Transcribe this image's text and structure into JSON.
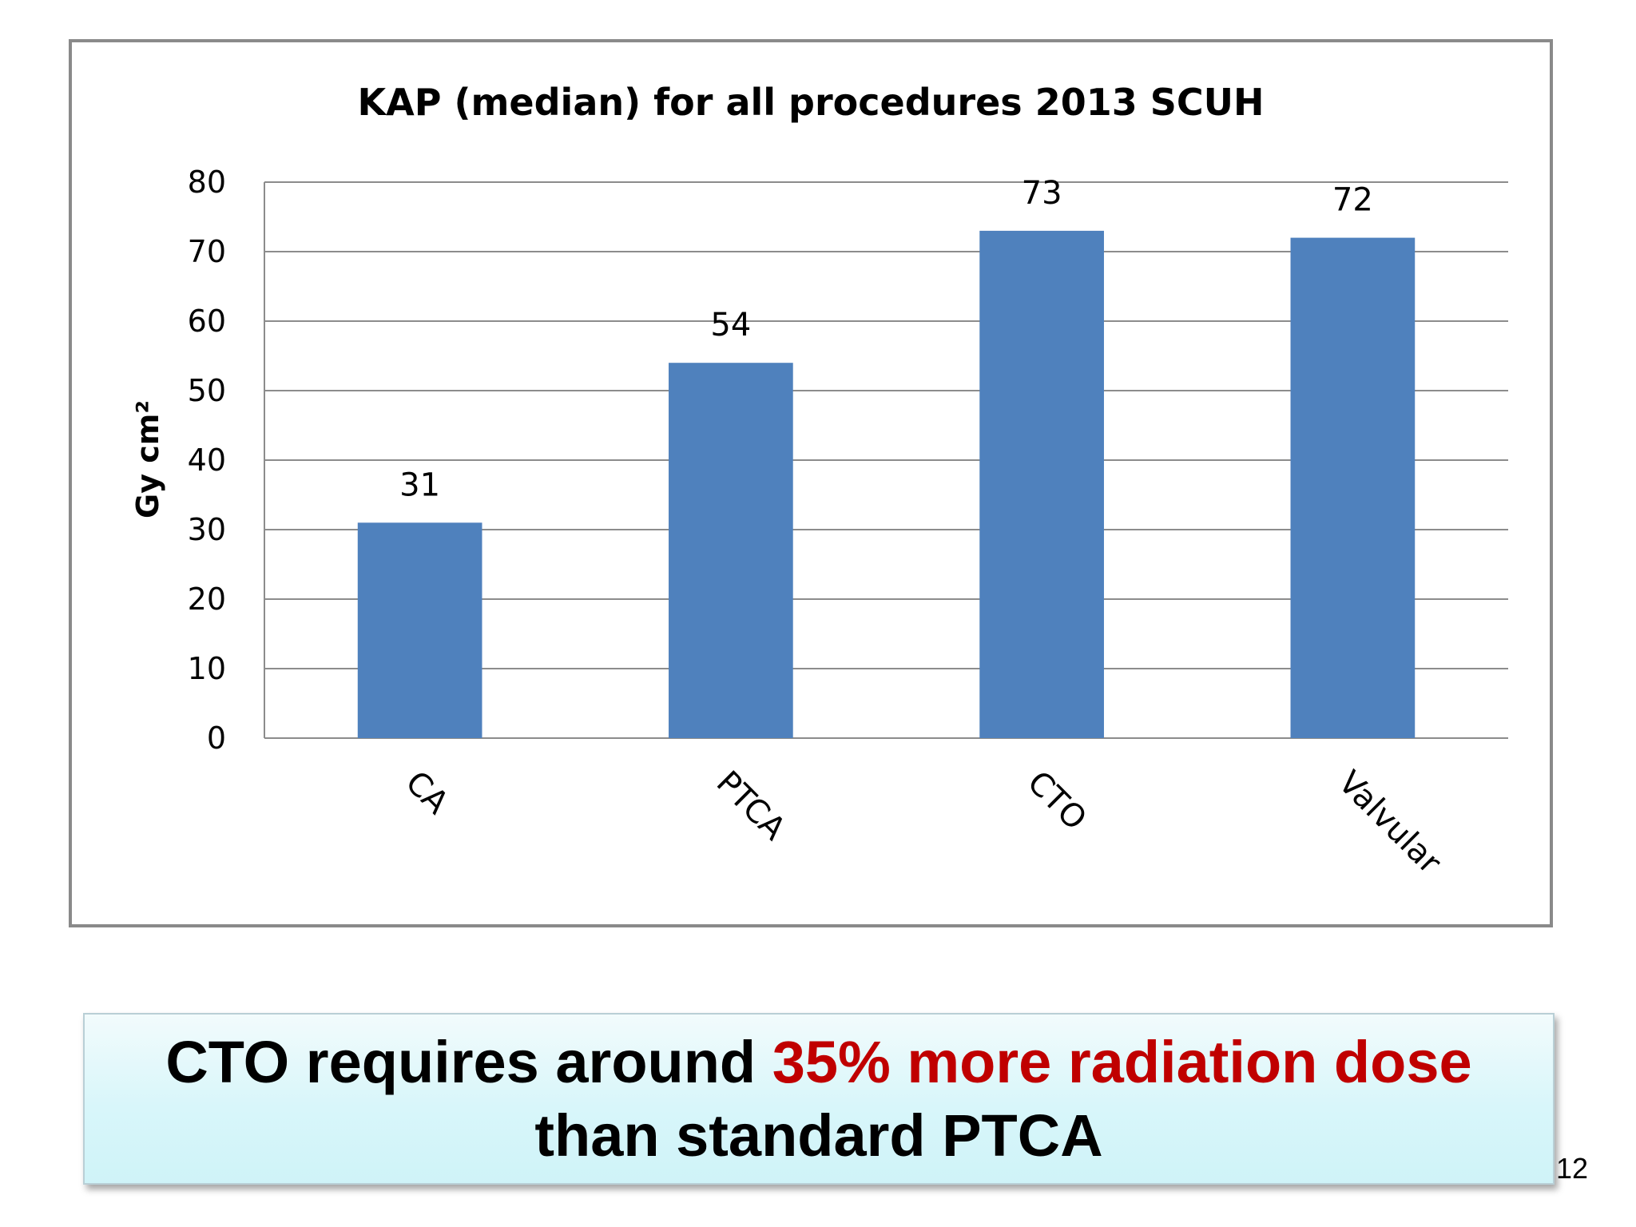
{
  "chart_data": {
    "type": "bar",
    "title": "KAP (median) for all procedures 2013 SCUH",
    "categories": [
      "CA",
      "PTCA",
      "CTO",
      "Valvular"
    ],
    "values": [
      31,
      54,
      73,
      72
    ],
    "data_labels": [
      "31",
      "54",
      "73",
      "72"
    ],
    "xlabel": "",
    "ylabel": "Gy cm²",
    "ylim": [
      0,
      80
    ],
    "yticks": [
      0,
      10,
      20,
      30,
      40,
      50,
      60,
      70,
      80
    ],
    "grid": true,
    "legend": "none",
    "bar_color": "#4f81bd"
  },
  "callout": {
    "part1": "CTO requires around ",
    "highlight": "35% more radiation dose",
    "part2": "than standard PTCA",
    "highlight_color": "#c00000"
  },
  "slide_number": "12"
}
